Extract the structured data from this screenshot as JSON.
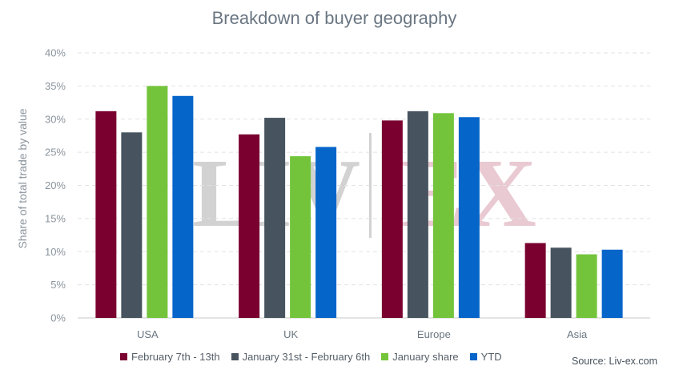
{
  "chart_data": {
    "type": "bar",
    "title": "Breakdown of buyer geography",
    "ylabel": "Share of total trade by value",
    "xlabel": "",
    "ylim": [
      0,
      40
    ],
    "yticks": [
      "0%",
      "5%",
      "10%",
      "15%",
      "20%",
      "25%",
      "30%",
      "35%",
      "40%"
    ],
    "categories": [
      "USA",
      "UK",
      "Europe",
      "Asia"
    ],
    "grid": true,
    "legend_position": "bottom",
    "series": [
      {
        "name": "February 7th - 13th",
        "color": "#7a0030",
        "values": [
          31.2,
          27.7,
          29.8,
          11.3
        ]
      },
      {
        "name": "January 31st - February 6th",
        "color": "#47545f",
        "values": [
          28.0,
          30.2,
          31.2,
          10.6
        ]
      },
      {
        "name": "January share",
        "color": "#73c43a",
        "values": [
          35.0,
          24.4,
          30.9,
          9.6
        ]
      },
      {
        "name": "YTD",
        "color": "#0565c9",
        "values": [
          33.5,
          25.8,
          30.3,
          10.3
        ]
      }
    ],
    "watermark": {
      "left": "LIV",
      "right": "EX"
    }
  },
  "source": "Source: Liv-ex.com"
}
